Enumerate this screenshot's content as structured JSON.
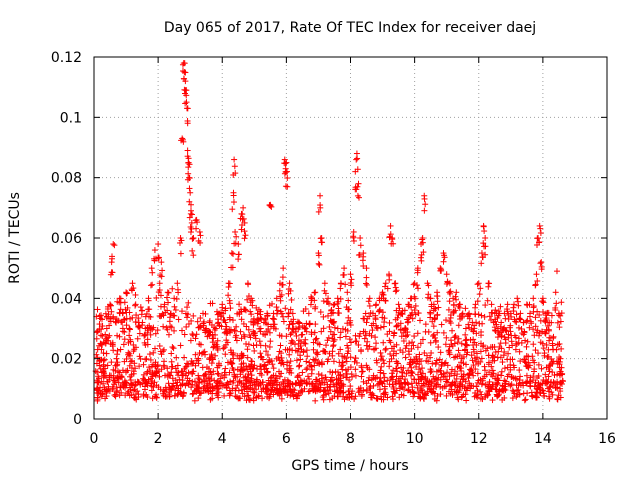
{
  "chart_data": {
    "type": "scatter",
    "title": "Day 065 of 2017, Rate Of TEC Index for receiver daej",
    "xlabel": "GPS time / hours",
    "ylabel": "ROTI / TECUs",
    "xlim": [
      0,
      16
    ],
    "ylim": [
      0,
      0.12
    ],
    "x_ticks": [
      0,
      2,
      4,
      6,
      8,
      10,
      12,
      14,
      16
    ],
    "x_tick_labels": [
      "0",
      "2",
      "4",
      "6",
      "8",
      "10",
      "12",
      "14",
      "16"
    ],
    "y_ticks": [
      0,
      0.02,
      0.04,
      0.06,
      0.08,
      0.1,
      0.12
    ],
    "y_tick_labels": [
      "0",
      "0.02",
      "0.04",
      "0.06",
      "0.08",
      "0.1",
      "0.12"
    ],
    "grid": true,
    "marker": "plus",
    "color": "#ff0000",
    "data_range_x": [
      0.05,
      14.6
    ],
    "series": [
      {
        "name": "ROTI",
        "points": [
          [
            0.1,
            0.012
          ],
          [
            0.2,
            0.025
          ],
          [
            0.25,
            0.033
          ],
          [
            0.3,
            0.018
          ],
          [
            0.35,
            0.028
          ],
          [
            0.4,
            0.03
          ],
          [
            0.5,
            0.038
          ],
          [
            0.55,
            0.052
          ],
          [
            0.6,
            0.058
          ],
          [
            0.7,
            0.02
          ],
          [
            0.8,
            0.04
          ],
          [
            0.9,
            0.035
          ],
          [
            1.0,
            0.042
          ],
          [
            1.1,
            0.03
          ],
          [
            1.2,
            0.045
          ],
          [
            1.3,
            0.038
          ],
          [
            1.4,
            0.032
          ],
          [
            1.5,
            0.036
          ],
          [
            1.6,
            0.03
          ],
          [
            1.7,
            0.04
          ],
          [
            1.8,
            0.05
          ],
          [
            1.9,
            0.056
          ],
          [
            2.0,
            0.058
          ],
          [
            2.05,
            0.045
          ],
          [
            2.1,
            0.052
          ],
          [
            2.2,
            0.038
          ],
          [
            2.3,
            0.042
          ],
          [
            2.4,
            0.035
          ],
          [
            2.5,
            0.04
          ],
          [
            2.6,
            0.045
          ],
          [
            2.7,
            0.06
          ],
          [
            2.75,
            0.093
          ],
          [
            2.8,
            0.118
          ],
          [
            2.82,
            0.115
          ],
          [
            2.85,
            0.112
          ],
          [
            2.88,
            0.109
          ],
          [
            2.9,
            0.103
          ],
          [
            2.92,
            0.089
          ],
          [
            2.95,
            0.085
          ],
          [
            2.97,
            0.08
          ],
          [
            3.0,
            0.075
          ],
          [
            3.02,
            0.068
          ],
          [
            3.05,
            0.065
          ],
          [
            3.1,
            0.06
          ],
          [
            3.2,
            0.066
          ],
          [
            3.3,
            0.062
          ],
          [
            3.4,
            0.035
          ],
          [
            3.5,
            0.03
          ],
          [
            3.6,
            0.032
          ],
          [
            3.7,
            0.028
          ],
          [
            3.8,
            0.03
          ],
          [
            3.9,
            0.035
          ],
          [
            4.0,
            0.038
          ],
          [
            4.1,
            0.032
          ],
          [
            4.2,
            0.045
          ],
          [
            4.3,
            0.055
          ],
          [
            4.35,
            0.075
          ],
          [
            4.37,
            0.086
          ],
          [
            4.4,
            0.062
          ],
          [
            4.5,
            0.058
          ],
          [
            4.6,
            0.068
          ],
          [
            4.65,
            0.07
          ],
          [
            4.7,
            0.065
          ],
          [
            4.8,
            0.045
          ],
          [
            4.9,
            0.04
          ],
          [
            5.0,
            0.032
          ],
          [
            5.1,
            0.035
          ],
          [
            5.2,
            0.03
          ],
          [
            5.3,
            0.032
          ],
          [
            5.4,
            0.035
          ],
          [
            5.5,
            0.071
          ],
          [
            5.6,
            0.035
          ],
          [
            5.7,
            0.04
          ],
          [
            5.8,
            0.045
          ],
          [
            5.9,
            0.05
          ],
          [
            5.95,
            0.086
          ],
          [
            6.0,
            0.085
          ],
          [
            6.02,
            0.082
          ],
          [
            6.1,
            0.045
          ],
          [
            6.2,
            0.035
          ],
          [
            6.3,
            0.03
          ],
          [
            6.4,
            0.032
          ],
          [
            6.5,
            0.028
          ],
          [
            6.6,
            0.03
          ],
          [
            6.7,
            0.035
          ],
          [
            6.8,
            0.04
          ],
          [
            6.9,
            0.042
          ],
          [
            7.0,
            0.055
          ],
          [
            7.05,
            0.074
          ],
          [
            7.1,
            0.06
          ],
          [
            7.2,
            0.045
          ],
          [
            7.3,
            0.04
          ],
          [
            7.4,
            0.035
          ],
          [
            7.5,
            0.038
          ],
          [
            7.6,
            0.04
          ],
          [
            7.7,
            0.045
          ],
          [
            7.8,
            0.05
          ],
          [
            7.9,
            0.042
          ],
          [
            8.0,
            0.048
          ],
          [
            8.1,
            0.062
          ],
          [
            8.15,
            0.082
          ],
          [
            8.2,
            0.088
          ],
          [
            8.25,
            0.078
          ],
          [
            8.3,
            0.06
          ],
          [
            8.4,
            0.055
          ],
          [
            8.5,
            0.05
          ],
          [
            8.6,
            0.04
          ],
          [
            8.7,
            0.035
          ],
          [
            8.8,
            0.038
          ],
          [
            8.9,
            0.04
          ],
          [
            9.0,
            0.042
          ],
          [
            9.1,
            0.045
          ],
          [
            9.2,
            0.048
          ],
          [
            9.25,
            0.064
          ],
          [
            9.3,
            0.06
          ],
          [
            9.4,
            0.045
          ],
          [
            9.5,
            0.038
          ],
          [
            9.6,
            0.035
          ],
          [
            9.7,
            0.03
          ],
          [
            9.8,
            0.038
          ],
          [
            9.9,
            0.04
          ],
          [
            10.0,
            0.045
          ],
          [
            10.1,
            0.05
          ],
          [
            10.2,
            0.058
          ],
          [
            10.25,
            0.06
          ],
          [
            10.3,
            0.074
          ],
          [
            10.4,
            0.045
          ],
          [
            10.5,
            0.04
          ],
          [
            10.6,
            0.038
          ],
          [
            10.7,
            0.042
          ],
          [
            10.8,
            0.05
          ],
          [
            10.9,
            0.055
          ],
          [
            11.0,
            0.048
          ],
          [
            11.1,
            0.045
          ],
          [
            11.2,
            0.04
          ],
          [
            11.3,
            0.042
          ],
          [
            11.4,
            0.038
          ],
          [
            11.5,
            0.035
          ],
          [
            11.6,
            0.03
          ],
          [
            11.7,
            0.035
          ],
          [
            11.8,
            0.032
          ],
          [
            11.9,
            0.038
          ],
          [
            12.0,
            0.045
          ],
          [
            12.1,
            0.055
          ],
          [
            12.15,
            0.064
          ],
          [
            12.2,
            0.06
          ],
          [
            12.3,
            0.045
          ],
          [
            12.4,
            0.038
          ],
          [
            12.5,
            0.035
          ],
          [
            12.6,
            0.03
          ],
          [
            12.7,
            0.032
          ],
          [
            12.8,
            0.035
          ],
          [
            12.9,
            0.038
          ],
          [
            13.0,
            0.035
          ],
          [
            13.1,
            0.038
          ],
          [
            13.2,
            0.04
          ],
          [
            13.3,
            0.035
          ],
          [
            13.4,
            0.032
          ],
          [
            13.5,
            0.038
          ],
          [
            13.6,
            0.035
          ],
          [
            13.7,
            0.04
          ],
          [
            13.8,
            0.048
          ],
          [
            13.85,
            0.06
          ],
          [
            13.9,
            0.064
          ],
          [
            13.95,
            0.052
          ],
          [
            14.0,
            0.04
          ],
          [
            14.1,
            0.035
          ],
          [
            14.2,
            0.032
          ],
          [
            14.3,
            0.025
          ],
          [
            14.4,
            0.042
          ],
          [
            14.5,
            0.035
          ],
          [
            14.55,
            0.02
          ],
          [
            14.6,
            0.015
          ]
        ]
      }
    ]
  }
}
